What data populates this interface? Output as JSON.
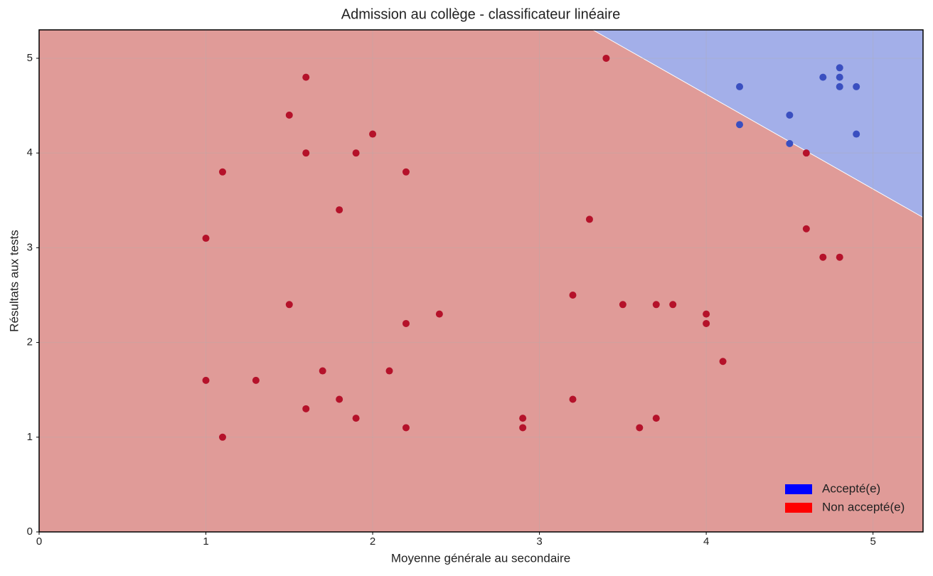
{
  "chart_data": {
    "type": "scatter",
    "title": "Admission au collège - classificateur linéaire",
    "x_label": "Moyenne générale au secondaire",
    "y_label": "Résultats aux tests",
    "xlim": [
      0,
      5.3
    ],
    "ylim": [
      0,
      5.3
    ],
    "xticks": [
      0,
      1,
      2,
      3,
      4,
      5
    ],
    "yticks": [
      0,
      1,
      2,
      3,
      4,
      5
    ],
    "grid": true,
    "legend": "lower right",
    "decision_boundary": {
      "x": [
        3.32,
        5.3
      ],
      "values": [
        5.3,
        3.32
      ]
    },
    "series": [
      {
        "name": "Accepté(e)",
        "color": "#0000ff",
        "marker_color": "#3a4fc0",
        "region_color": "#a3afe9",
        "region": "above",
        "x": [
          4.2,
          4.2,
          4.5,
          4.5,
          4.7,
          4.8,
          4.8,
          4.8,
          4.9,
          4.9
        ],
        "values": [
          4.7,
          4.3,
          4.4,
          4.1,
          4.8,
          4.9,
          4.8,
          4.7,
          4.7,
          4.2
        ]
      },
      {
        "name": "Non accepté(e)",
        "color": "#ff0000",
        "marker_color": "#b5122a",
        "region_color": "#e09b98",
        "region": "below",
        "x": [
          3.4,
          1.6,
          1.5,
          2.0,
          1.6,
          1.9,
          1.1,
          2.2,
          1.8,
          3.3,
          1.0,
          4.6,
          4.6,
          4.7,
          4.8,
          3.2,
          1.5,
          2.4,
          2.2,
          3.5,
          3.7,
          3.8,
          4.0,
          4.0,
          4.1,
          1.0,
          1.3,
          1.7,
          2.1,
          1.8,
          1.6,
          1.9,
          1.1,
          2.2,
          2.9,
          2.9,
          3.2,
          3.6,
          3.7
        ],
        "values": [
          5.0,
          4.8,
          4.4,
          4.2,
          4.0,
          4.0,
          3.8,
          3.8,
          3.4,
          3.3,
          3.1,
          4.0,
          3.2,
          2.9,
          2.9,
          2.5,
          2.4,
          2.3,
          2.2,
          2.4,
          2.4,
          2.4,
          2.3,
          2.2,
          1.8,
          1.6,
          1.6,
          1.7,
          1.7,
          1.4,
          1.3,
          1.2,
          1.0,
          1.1,
          1.2,
          1.1,
          1.4,
          1.1,
          1.2
        ]
      }
    ]
  }
}
